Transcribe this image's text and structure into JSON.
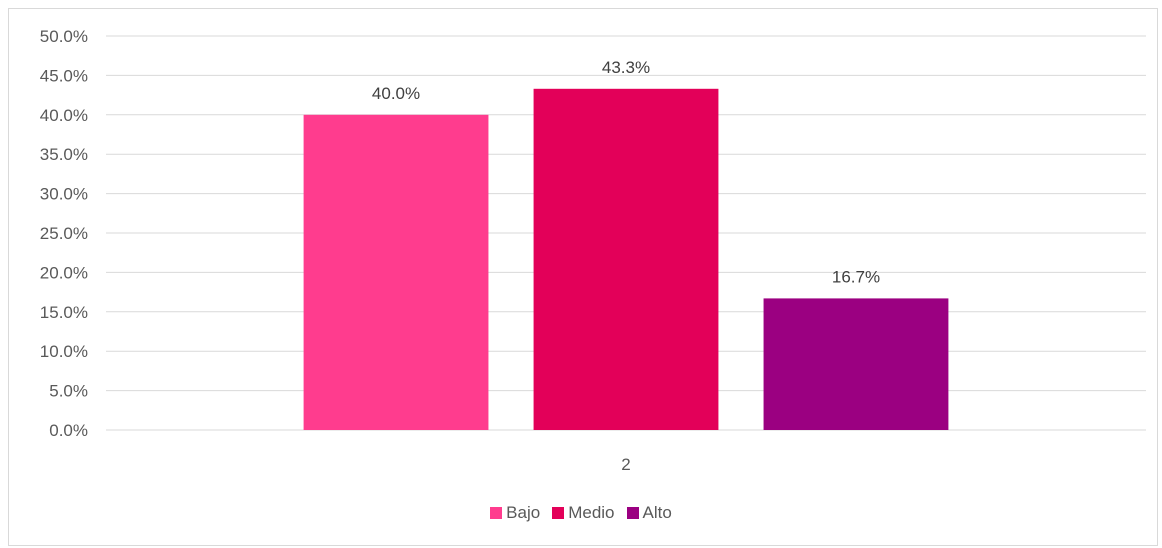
{
  "chart_data": {
    "type": "bar",
    "categories": [
      "2"
    ],
    "series": [
      {
        "name": "Bajo",
        "values": [
          40.0
        ],
        "color": "#ff3c8e",
        "label": "40.0%"
      },
      {
        "name": "Medio",
        "values": [
          43.3
        ],
        "color": "#e30059",
        "label": "43.3%"
      },
      {
        "name": "Alto",
        "values": [
          16.7
        ],
        "color": "#9b0081",
        "label": "16.7%"
      }
    ],
    "ylim": [
      0,
      50
    ],
    "yticks": [
      0,
      5,
      10,
      15,
      20,
      25,
      30,
      35,
      40,
      45,
      50
    ],
    "ytick_labels": [
      "0.0%",
      "5.0%",
      "10.0%",
      "15.0%",
      "20.0%",
      "25.0%",
      "30.0%",
      "35.0%",
      "40.0%",
      "45.0%",
      "50.0%"
    ],
    "grid": true,
    "legend_position": "bottom"
  }
}
